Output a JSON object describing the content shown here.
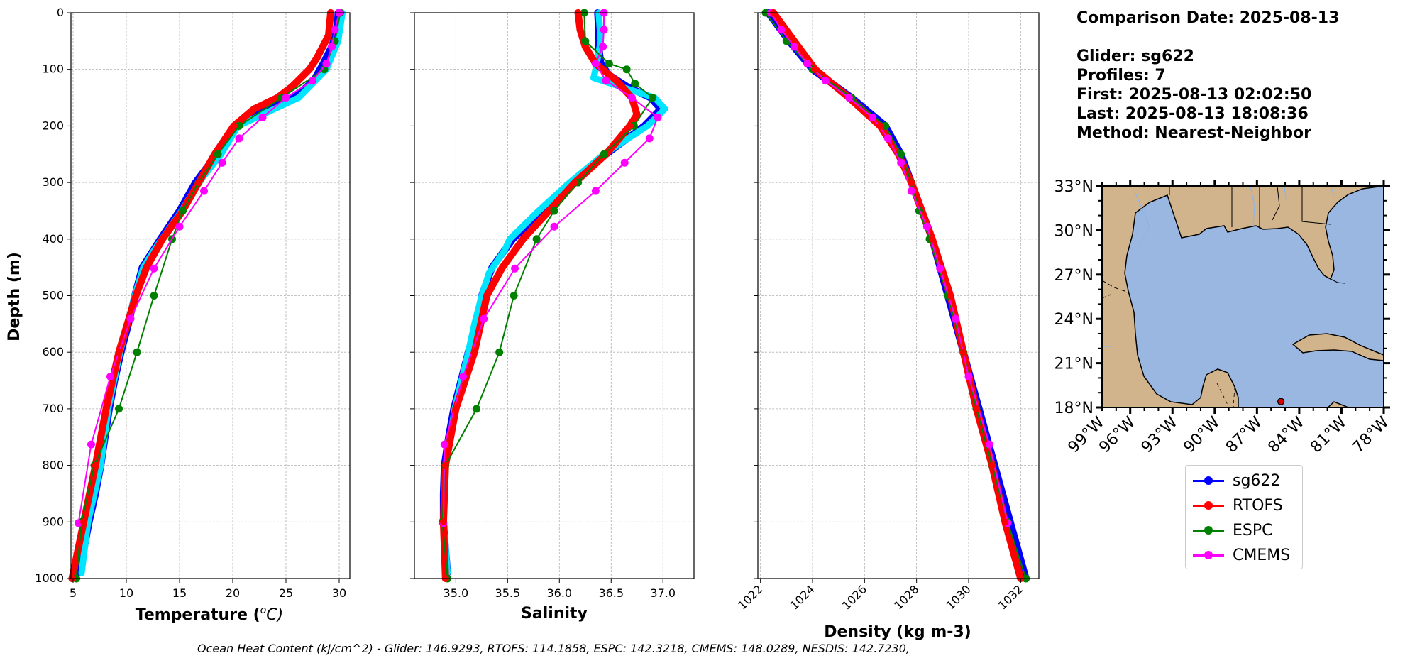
{
  "info": {
    "comparison_date": "Comparison Date: 2025-08-13",
    "glider": "Glider: sg622",
    "profiles": "Profiles: 7",
    "first": "First: 2025-08-13 02:02:50",
    "last": "Last: 2025-08-13 18:08:36",
    "method": "Method: Nearest-Neighbor"
  },
  "footer": "Ocean Heat Content (kJ/cm^2) - Glider: 146.9293,  RTOFS: 114.1858,  ESPC: 142.3218,  CMEMS: 148.0289,  NESDIS: 142.7230,",
  "legend": [
    {
      "name": "sg622",
      "color": "#0000ff"
    },
    {
      "name": "RTOFS",
      "color": "#ff0000"
    },
    {
      "name": "ESPC",
      "color": "#008000"
    },
    {
      "name": "CMEMS",
      "color": "#ff00ff"
    }
  ],
  "chart_data": [
    {
      "type": "line",
      "panel": "temperature",
      "xlabel": "Temperature (°C)",
      "xlabel_main": "Temperature (",
      "xlabel_sup": "o",
      "xlabel_unit": "C)",
      "ylabel": "Depth (m)",
      "xlim": [
        4.8,
        31
      ],
      "ylim": [
        1000,
        0
      ],
      "xticks": [
        5,
        10,
        15,
        20,
        25,
        30
      ],
      "xtick_labels": [
        "5",
        "10",
        "15",
        "20",
        "25",
        "30"
      ],
      "yticks": [
        0,
        100,
        200,
        300,
        400,
        500,
        600,
        700,
        800,
        900,
        1000
      ],
      "ytick_labels": [
        "0",
        "100",
        "200",
        "300",
        "400",
        "500",
        "600",
        "700",
        "800",
        "900",
        "1000"
      ],
      "grid": true,
      "series": [
        {
          "name": "sg622",
          "color": "#0000ff",
          "style": "thick",
          "depth": [
            0,
            30,
            60,
            90,
            120,
            150,
            170,
            200,
            250,
            300,
            350,
            400,
            450,
            500,
            550,
            600,
            650,
            700,
            750,
            800,
            850,
            900,
            950,
            990
          ],
          "values": [
            29.9,
            29.8,
            29.3,
            28.5,
            27.6,
            25.8,
            22.8,
            20.2,
            18.5,
            16.5,
            15.0,
            13.2,
            11.5,
            10.8,
            10.2,
            9.5,
            8.9,
            8.4,
            8.0,
            7.6,
            7.1,
            6.5,
            6.0,
            5.7
          ]
        },
        {
          "name": "cyan-envelope",
          "color": "#00e5ff",
          "style": "thick",
          "depth": [
            0,
            50,
            100,
            150,
            200,
            250,
            300,
            350,
            420,
            450,
            500,
            600,
            700,
            800,
            900,
            990
          ],
          "values": [
            30.3,
            29.9,
            28.8,
            26.2,
            20.5,
            18.9,
            16.8,
            15.2,
            12.6,
            11.6,
            10.8,
            9.4,
            8.3,
            7.6,
            6.4,
            5.8
          ]
        },
        {
          "name": "RTOFS",
          "color": "#ff0000",
          "style": "thick",
          "depth": [
            0,
            40,
            80,
            100,
            130,
            150,
            170,
            200,
            250,
            300,
            350,
            400,
            450,
            500,
            600,
            700,
            800,
            900,
            1000
          ],
          "values": [
            29.2,
            29.0,
            27.9,
            27.2,
            25.6,
            24.2,
            22.0,
            20.1,
            18.3,
            16.8,
            15.3,
            13.4,
            11.9,
            10.9,
            9.3,
            8.1,
            7.1,
            6.0,
            4.9
          ]
        },
        {
          "name": "ESPC",
          "color": "#008000",
          "style": "markers",
          "depth": [
            0,
            50,
            100,
            150,
            200,
            250,
            300,
            350,
            400,
            500,
            600,
            700,
            800,
            900,
            1000
          ],
          "values": [
            30.1,
            29.6,
            28.6,
            24.6,
            20.6,
            18.6,
            16.8,
            15.3,
            14.3,
            12.6,
            11.0,
            9.3,
            7.0,
            5.8,
            5.3
          ]
        },
        {
          "name": "CMEMS",
          "color": "#ff00ff",
          "style": "markers",
          "depth": [
            0,
            30,
            60,
            90,
            120,
            150,
            185,
            222,
            265,
            315,
            378,
            452,
            541,
            643,
            763,
            902
          ],
          "values": [
            30.0,
            29.6,
            29.3,
            28.8,
            27.5,
            25.0,
            22.8,
            20.6,
            19.0,
            17.3,
            15.0,
            12.6,
            10.4,
            8.5,
            6.7,
            5.5
          ]
        }
      ]
    },
    {
      "type": "line",
      "panel": "salinity",
      "xlabel": "Salinity",
      "xlim": [
        34.6,
        37.3
      ],
      "ylim": [
        1000,
        0
      ],
      "xticks": [
        35.0,
        35.5,
        36.0,
        36.5,
        37.0
      ],
      "xtick_labels": [
        "35.0",
        "35.5",
        "36.0",
        "36.5",
        "37.0"
      ],
      "yticks": [
        0,
        100,
        200,
        300,
        400,
        500,
        600,
        700,
        800,
        900,
        1000
      ],
      "grid": true,
      "series": [
        {
          "name": "sg622",
          "color": "#0000ff",
          "style": "thick",
          "depth": [
            0,
            30,
            60,
            90,
            110,
            130,
            150,
            170,
            200,
            250,
            300,
            350,
            400,
            450,
            500,
            550,
            600,
            650,
            700,
            750,
            800,
            850,
            900,
            950,
            990
          ],
          "values": [
            36.37,
            36.38,
            36.38,
            36.4,
            36.48,
            36.65,
            36.88,
            36.98,
            36.82,
            36.45,
            36.12,
            35.83,
            35.55,
            35.35,
            35.25,
            35.2,
            35.12,
            35.05,
            34.98,
            34.93,
            34.89,
            34.88,
            34.88,
            34.9,
            34.92
          ]
        },
        {
          "name": "cyan-envelope",
          "color": "#00e5ff",
          "style": "thick",
          "depth": [
            0,
            50,
            100,
            115,
            150,
            170,
            200,
            250,
            300,
            350,
            400,
            420,
            460,
            500,
            550,
            600,
            700,
            800,
            900,
            990
          ],
          "values": [
            36.38,
            36.4,
            36.35,
            36.33,
            36.92,
            37.02,
            36.85,
            36.43,
            36.1,
            35.8,
            35.52,
            35.47,
            35.32,
            35.25,
            35.18,
            35.12,
            34.99,
            34.9,
            34.88,
            34.92
          ]
        },
        {
          "name": "RTOFS",
          "color": "#ff0000",
          "style": "thick",
          "depth": [
            0,
            30,
            60,
            90,
            120,
            150,
            180,
            200,
            250,
            300,
            350,
            400,
            450,
            500,
            600,
            700,
            800,
            900,
            1000
          ],
          "values": [
            36.18,
            36.2,
            36.25,
            36.35,
            36.55,
            36.7,
            36.75,
            36.68,
            36.45,
            36.15,
            35.9,
            35.65,
            35.45,
            35.3,
            35.18,
            35.0,
            34.9,
            34.88,
            34.9
          ]
        },
        {
          "name": "ESPC",
          "color": "#008000",
          "style": "markers",
          "depth": [
            0,
            50,
            90,
            100,
            125,
            150,
            200,
            250,
            300,
            350,
            400,
            500,
            600,
            700,
            800,
            900,
            1000
          ],
          "values": [
            36.24,
            36.25,
            36.48,
            36.65,
            36.73,
            36.9,
            36.72,
            36.43,
            36.18,
            35.95,
            35.78,
            35.56,
            35.42,
            35.2,
            34.9,
            34.87,
            34.92
          ]
        },
        {
          "name": "CMEMS",
          "color": "#ff00ff",
          "style": "markers",
          "depth": [
            0,
            30,
            60,
            90,
            120,
            150,
            185,
            222,
            265,
            315,
            378,
            452,
            541,
            643,
            763,
            902
          ],
          "values": [
            36.43,
            36.43,
            36.42,
            36.35,
            36.45,
            36.7,
            36.95,
            36.87,
            36.63,
            36.35,
            35.95,
            35.57,
            35.27,
            35.07,
            34.89,
            34.88
          ]
        }
      ]
    },
    {
      "type": "line",
      "panel": "density",
      "xlabel": "Density (kg m-3)",
      "xlim": [
        1021.9,
        1032.7
      ],
      "ylim": [
        1000,
        0
      ],
      "xticks": [
        1022,
        1024,
        1026,
        1028,
        1030,
        1032
      ],
      "xtick_labels": [
        "1022",
        "1024",
        "1026",
        "1028",
        "1030",
        "1032"
      ],
      "yticks": [
        0,
        100,
        200,
        300,
        400,
        500,
        600,
        700,
        800,
        900,
        1000
      ],
      "grid": true,
      "series": [
        {
          "name": "sg622",
          "color": "#0000ff",
          "style": "thick",
          "depth": [
            0,
            50,
            100,
            150,
            200,
            250,
            300,
            350,
            400,
            450,
            500,
            550,
            600,
            650,
            700,
            750,
            800,
            850,
            900,
            950,
            1000
          ],
          "values": [
            1022.3,
            1023.1,
            1024.0,
            1025.5,
            1026.8,
            1027.4,
            1027.8,
            1028.2,
            1028.6,
            1028.9,
            1029.2,
            1029.5,
            1029.8,
            1030.1,
            1030.4,
            1030.7,
            1031.0,
            1031.3,
            1031.6,
            1031.9,
            1032.2
          ]
        },
        {
          "name": "RTOFS",
          "color": "#ff0000",
          "style": "thick",
          "depth": [
            0,
            50,
            100,
            150,
            200,
            250,
            300,
            350,
            400,
            500,
            600,
            700,
            800,
            900,
            1000
          ],
          "values": [
            1022.5,
            1023.3,
            1024.1,
            1025.4,
            1026.6,
            1027.3,
            1027.8,
            1028.2,
            1028.6,
            1029.3,
            1029.8,
            1030.3,
            1030.9,
            1031.4,
            1032.0
          ]
        },
        {
          "name": "ESPC",
          "color": "#008000",
          "style": "markers",
          "depth": [
            0,
            50,
            100,
            150,
            200,
            250,
            300,
            350,
            400,
            500,
            600,
            700,
            800,
            900,
            1000
          ],
          "values": [
            1022.2,
            1023.0,
            1024.0,
            1025.5,
            1026.8,
            1027.4,
            1027.8,
            1028.1,
            1028.5,
            1029.2,
            1029.8,
            1030.3,
            1030.9,
            1031.5,
            1032.2
          ]
        },
        {
          "name": "CMEMS",
          "color": "#ff00ff",
          "style": "markers",
          "depth": [
            0,
            30,
            60,
            90,
            120,
            150,
            185,
            222,
            265,
            315,
            378,
            452,
            541,
            643,
            763,
            902
          ],
          "values": [
            1022.4,
            1022.8,
            1023.3,
            1023.8,
            1024.5,
            1025.4,
            1026.3,
            1026.9,
            1027.4,
            1027.8,
            1028.4,
            1028.9,
            1029.5,
            1030.0,
            1030.8,
            1031.5
          ]
        }
      ]
    }
  ],
  "map": {
    "lat_labels": [
      "33°N",
      "30°N",
      "27°N",
      "24°N",
      "21°N",
      "18°N"
    ],
    "lat_values": [
      33,
      30,
      27,
      24,
      21,
      18
    ],
    "lon_labels": [
      "99°W",
      "96°W",
      "93°W",
      "90°W",
      "87°W",
      "84°W",
      "81°W",
      "78°W"
    ],
    "lon_values": [
      -99,
      -96,
      -93,
      -90,
      -87,
      -84,
      -81,
      -78
    ],
    "extent": [
      -98,
      -78,
      18,
      33
    ],
    "glider_position": {
      "lon": -85.3,
      "lat": 18.4
    },
    "land_color": "#d2b48c",
    "water_color": "#99b7e0"
  }
}
